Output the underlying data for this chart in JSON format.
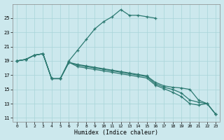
{
  "xlabel": "Humidex (Indice chaleur)",
  "background_color": "#cce8ed",
  "line_color": "#2d7a72",
  "grid_color": "#a8d4d8",
  "xlim": [
    -0.5,
    23.5
  ],
  "ylim": [
    10.5,
    27.0
  ],
  "yticks": [
    11,
    13,
    15,
    17,
    19,
    21,
    23,
    25
  ],
  "xticks": [
    0,
    1,
    2,
    3,
    4,
    5,
    6,
    7,
    8,
    9,
    10,
    11,
    12,
    13,
    14,
    15,
    16,
    17,
    18,
    19,
    20,
    21,
    22,
    23
  ],
  "curves": [
    {
      "x": [
        0,
        1,
        2,
        3,
        4,
        5,
        6,
        7,
        8,
        9,
        10,
        11,
        12,
        13,
        14,
        15,
        16
      ],
      "y": [
        19,
        19.2,
        19.8,
        20.0,
        16.5,
        16.5,
        19.0,
        20.5,
        22.0,
        23.5,
        24.5,
        25.2,
        26.2,
        25.4,
        25.4,
        25.2,
        25.0
      ]
    },
    {
      "x": [
        0,
        1,
        2,
        3,
        4,
        5,
        6,
        7,
        8,
        9,
        10,
        11,
        12,
        13,
        14,
        15,
        16,
        17,
        18,
        19,
        20,
        21,
        22,
        23
      ],
      "y": [
        19,
        19.2,
        19.8,
        20.0,
        16.5,
        16.5,
        18.8,
        18.5,
        18.3,
        18.1,
        17.9,
        17.7,
        17.5,
        17.3,
        17.1,
        16.9,
        16.0,
        15.5,
        15.3,
        15.2,
        15.0,
        13.5,
        13.0,
        11.5
      ]
    },
    {
      "x": [
        0,
        1,
        2,
        3,
        4,
        5,
        6,
        7,
        8,
        9,
        10,
        11,
        12,
        13,
        14,
        15,
        16,
        17,
        18,
        19,
        20,
        21,
        22,
        23
      ],
      "y": [
        19,
        19.2,
        19.8,
        20.0,
        16.5,
        16.5,
        18.8,
        18.4,
        18.2,
        18.0,
        17.8,
        17.6,
        17.4,
        17.2,
        17.0,
        16.8,
        15.8,
        15.3,
        15.0,
        14.5,
        13.5,
        13.2,
        13.0,
        11.5
      ]
    },
    {
      "x": [
        0,
        1,
        2,
        3,
        4,
        5,
        6,
        7,
        8,
        9,
        10,
        11,
        12,
        13,
        14,
        15,
        16,
        17,
        18,
        19,
        20,
        21,
        22,
        23
      ],
      "y": [
        19,
        19.2,
        19.8,
        20.0,
        16.5,
        16.5,
        18.8,
        18.2,
        18.0,
        17.8,
        17.6,
        17.4,
        17.2,
        17.0,
        16.8,
        16.6,
        15.6,
        15.1,
        14.6,
        14.0,
        13.0,
        12.8,
        13.0,
        11.5
      ]
    }
  ]
}
